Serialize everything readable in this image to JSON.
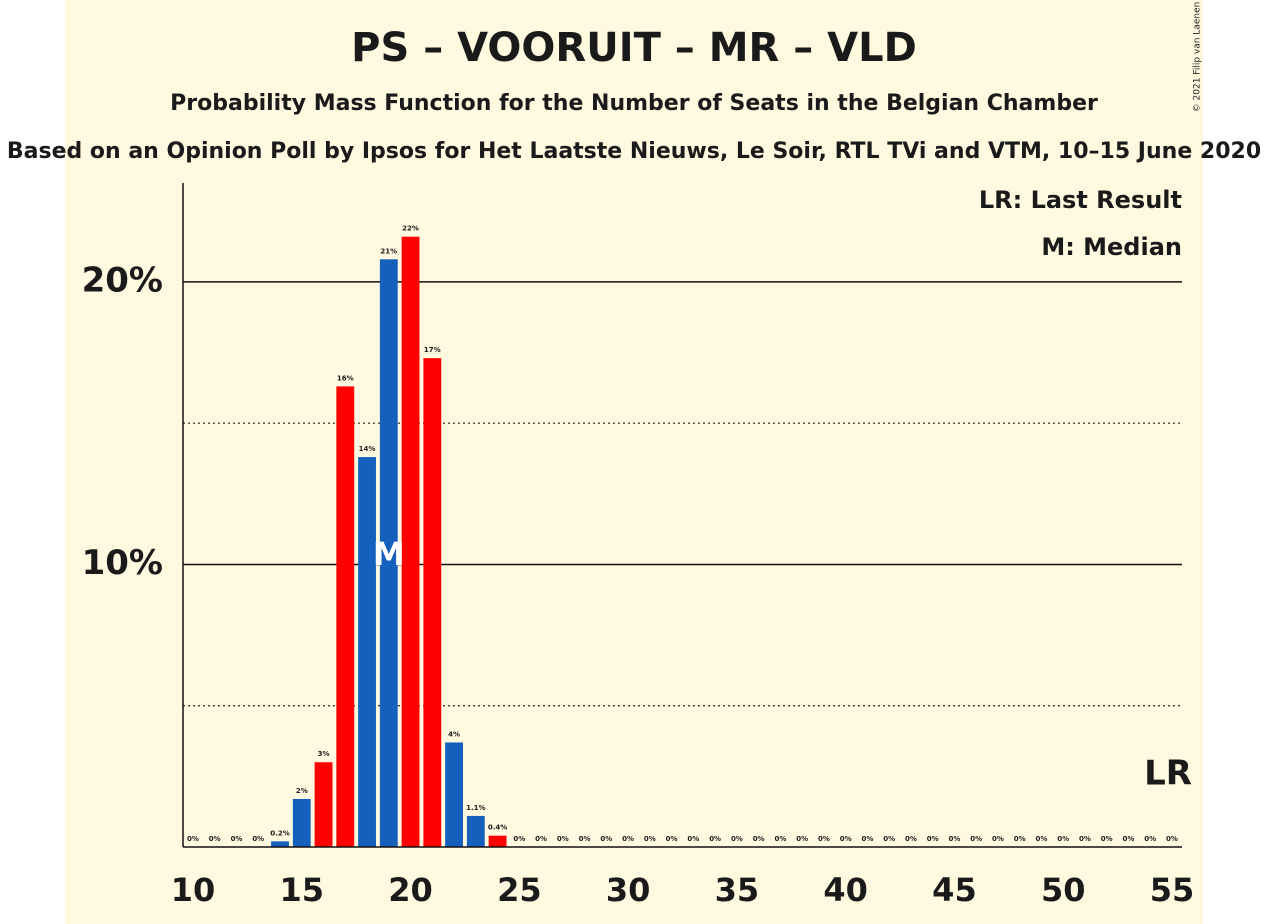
{
  "chart_data": {
    "type": "bar",
    "title": "PS – VOORUIT – MR – VLD",
    "subtitle": "Probability Mass Function for the Number of Seats in the Belgian Chamber",
    "source": "Based on an Opinion Poll by Ipsos for Het Laatste Nieuws, Le Soir, RTL TVi and VTM, 10–15 June 2020",
    "copyright": "© 2021 Filip van Laenen",
    "legend": [
      "LR: Last Result",
      "M: Median"
    ],
    "x": [
      10,
      11,
      12,
      13,
      14,
      15,
      16,
      17,
      18,
      19,
      20,
      21,
      22,
      23,
      24,
      25,
      26,
      27,
      28,
      29,
      30,
      31,
      32,
      33,
      34,
      35,
      36,
      37,
      38,
      39,
      40,
      41,
      42,
      43,
      44,
      45,
      46,
      47,
      48,
      49,
      50,
      51,
      52,
      53,
      54,
      55
    ],
    "values": [
      0,
      0,
      0,
      0,
      0.2,
      1.7,
      3.0,
      16.3,
      13.8,
      20.8,
      21.6,
      17.3,
      3.7,
      1.1,
      0.4,
      0,
      0,
      0,
      0,
      0,
      0,
      0,
      0,
      0,
      0,
      0,
      0,
      0,
      0,
      0,
      0,
      0,
      0,
      0,
      0,
      0,
      0,
      0,
      0,
      0,
      0,
      0,
      0,
      0,
      0,
      0
    ],
    "value_labels": [
      "0%",
      "0%",
      "0%",
      "0%",
      "0.2%",
      "2%",
      "3%",
      "16%",
      "14%",
      "21%",
      "22%",
      "17%",
      "4%",
      "1.1%",
      "0.4%",
      "0%",
      "0%",
      "0%",
      "0%",
      "0%",
      "0%",
      "0%",
      "0%",
      "0%",
      "0%",
      "0%",
      "0%",
      "0%",
      "0%",
      "0%",
      "0%",
      "0%",
      "0%",
      "0%",
      "0%",
      "0%",
      "0%",
      "0%",
      "0%",
      "0%",
      "0%",
      "0%",
      "0%",
      "0%",
      "0%",
      "0%"
    ],
    "colors": [
      "#1560bd",
      "#1560bd",
      "#ff0000",
      "#ff0000",
      "#1560bd",
      "#1560bd",
      "#ff0000",
      "#ff0000",
      "#1560bd",
      "#1560bd",
      "#ff0000",
      "#ff0000",
      "#1560bd",
      "#1560bd",
      "#ff0000",
      "#ff0000",
      "#1560bd",
      "#1560bd",
      "#ff0000",
      "#ff0000",
      "#1560bd",
      "#1560bd",
      "#ff0000",
      "#ff0000",
      "#1560bd",
      "#1560bd",
      "#ff0000",
      "#ff0000",
      "#1560bd",
      "#1560bd",
      "#ff0000",
      "#ff0000",
      "#1560bd",
      "#1560bd",
      "#ff0000",
      "#ff0000",
      "#1560bd",
      "#1560bd",
      "#ff0000",
      "#ff0000",
      "#1560bd",
      "#1560bd",
      "#ff0000",
      "#ff0000",
      "#1560bd",
      "#1560bd"
    ],
    "xlim": [
      10,
      55
    ],
    "xticks": [
      10,
      15,
      20,
      25,
      30,
      35,
      40,
      45,
      50,
      55
    ],
    "ylim": [
      0,
      23.5
    ],
    "yticks": [
      {
        "value": 10,
        "label": "10%"
      },
      {
        "value": 20,
        "label": "20%"
      }
    ],
    "minor_gridlines": [
      5,
      15
    ],
    "median": 19,
    "median_label": "M",
    "last_result": 55,
    "last_result_label": "LR"
  }
}
